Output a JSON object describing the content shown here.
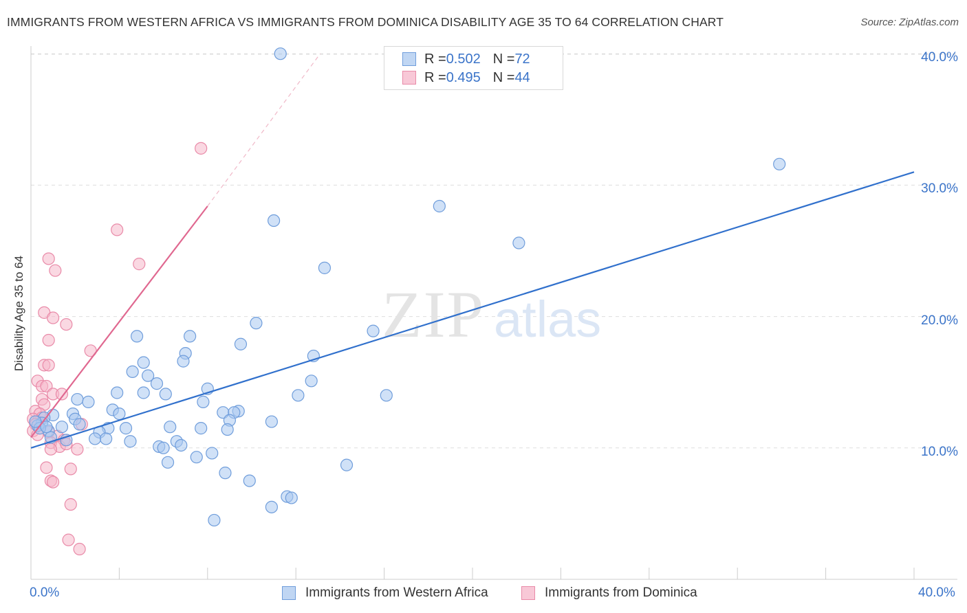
{
  "title": "IMMIGRANTS FROM WESTERN AFRICA VS IMMIGRANTS FROM DOMINICA DISABILITY AGE 35 TO 64 CORRELATION CHART",
  "source": "Source: ZipAtlas.com",
  "watermark": {
    "zip": "ZIP",
    "atlas": "atlas"
  },
  "legend": {
    "items": [
      {
        "r_label": "R = ",
        "r_value": "0.502",
        "n_label": "N = ",
        "n_value": "72"
      },
      {
        "r_label": "R = ",
        "r_value": "0.495",
        "n_label": "N = ",
        "n_value": "44"
      }
    ]
  },
  "colors": {
    "blue_fill": "#a9c8f0",
    "blue_stroke": "#6f9ddb",
    "blue_line": "#3070cc",
    "pink_fill": "#f6b8cb",
    "pink_stroke": "#e98aa8",
    "pink_line": "#e06890",
    "accent_text": "#3b74c9",
    "grid": "#dddddd"
  },
  "chart_data": {
    "type": "scatter",
    "title": "IMMIGRANTS FROM WESTERN AFRICA VS IMMIGRANTS FROM DOMINICA DISABILITY AGE 35 TO 64 CORRELATION CHART",
    "xlabel": "",
    "ylabel": "Disability Age 35 to 64",
    "xlim": [
      0,
      40
    ],
    "ylim": [
      0,
      41
    ],
    "x_tick_labels": [
      "0.0%",
      "40.0%"
    ],
    "y_ticks": [
      10,
      20,
      30,
      40
    ],
    "y_tick_labels": [
      "10.0%",
      "20.0%",
      "30.0%",
      "40.0%"
    ],
    "legend_position": "top-center",
    "series": [
      {
        "name": "Immigrants from Western Africa",
        "color": "blue",
        "r": 0.502,
        "n": 72,
        "trend": {
          "x": [
            0,
            40
          ],
          "y": [
            10.0,
            31.0
          ]
        },
        "points": [
          [
            11.3,
            40.0
          ],
          [
            33.9,
            31.6
          ],
          [
            18.5,
            28.4
          ],
          [
            22.1,
            25.6
          ],
          [
            11.0,
            27.3
          ],
          [
            13.3,
            23.7
          ],
          [
            15.5,
            18.9
          ],
          [
            10.2,
            19.5
          ],
          [
            9.5,
            17.9
          ],
          [
            4.8,
            18.5
          ],
          [
            7.2,
            18.5
          ],
          [
            7.0,
            17.2
          ],
          [
            6.9,
            16.6
          ],
          [
            5.1,
            16.5
          ],
          [
            4.6,
            15.8
          ],
          [
            5.3,
            15.5
          ],
          [
            5.7,
            14.9
          ],
          [
            8.0,
            14.5
          ],
          [
            12.8,
            17.0
          ],
          [
            12.7,
            15.1
          ],
          [
            16.1,
            14.0
          ],
          [
            12.1,
            14.0
          ],
          [
            3.9,
            14.2
          ],
          [
            5.1,
            14.2
          ],
          [
            6.1,
            14.1
          ],
          [
            7.8,
            13.5
          ],
          [
            2.1,
            13.7
          ],
          [
            2.6,
            13.5
          ],
          [
            3.7,
            12.9
          ],
          [
            4.0,
            12.6
          ],
          [
            8.7,
            12.7
          ],
          [
            9.4,
            12.8
          ],
          [
            9.2,
            12.7
          ],
          [
            9.0,
            12.1
          ],
          [
            10.9,
            12.0
          ],
          [
            1.0,
            12.5
          ],
          [
            1.9,
            12.6
          ],
          [
            2.0,
            12.2
          ],
          [
            0.6,
            12.3
          ],
          [
            1.4,
            11.6
          ],
          [
            2.2,
            11.8
          ],
          [
            0.5,
            11.9
          ],
          [
            0.3,
            11.7
          ],
          [
            0.8,
            11.3
          ],
          [
            3.5,
            11.5
          ],
          [
            4.3,
            11.5
          ],
          [
            6.3,
            11.6
          ],
          [
            7.7,
            11.5
          ],
          [
            8.9,
            11.4
          ],
          [
            3.1,
            11.2
          ],
          [
            0.9,
            10.8
          ],
          [
            2.9,
            10.7
          ],
          [
            3.4,
            10.7
          ],
          [
            1.6,
            10.6
          ],
          [
            4.5,
            10.5
          ],
          [
            6.6,
            10.5
          ],
          [
            5.8,
            10.1
          ],
          [
            6.8,
            10.2
          ],
          [
            6.0,
            10.0
          ],
          [
            8.2,
            9.6
          ],
          [
            7.5,
            9.3
          ],
          [
            6.2,
            8.9
          ],
          [
            14.3,
            8.7
          ],
          [
            8.8,
            8.1
          ],
          [
            9.9,
            7.5
          ],
          [
            11.6,
            6.3
          ],
          [
            11.8,
            6.2
          ],
          [
            10.9,
            5.5
          ],
          [
            8.3,
            4.5
          ],
          [
            0.4,
            11.5
          ],
          [
            0.2,
            12.0
          ],
          [
            0.7,
            11.6
          ]
        ]
      },
      {
        "name": "Immigrants from Dominica",
        "color": "pink",
        "r": 0.495,
        "n": 44,
        "trend": {
          "x": [
            0,
            8.0
          ],
          "y": [
            10.8,
            28.4
          ]
        },
        "trend_extended": {
          "x": [
            8.0,
            13.1
          ],
          "y": [
            28.4,
            40.0
          ]
        },
        "points": [
          [
            7.7,
            32.8
          ],
          [
            3.9,
            26.6
          ],
          [
            4.9,
            24.0
          ],
          [
            0.8,
            24.4
          ],
          [
            1.1,
            23.5
          ],
          [
            0.6,
            20.3
          ],
          [
            1.0,
            19.9
          ],
          [
            1.6,
            19.4
          ],
          [
            0.8,
            18.2
          ],
          [
            2.7,
            17.4
          ],
          [
            0.6,
            16.3
          ],
          [
            0.8,
            16.3
          ],
          [
            0.3,
            15.1
          ],
          [
            0.5,
            14.7
          ],
          [
            0.7,
            14.7
          ],
          [
            1.0,
            14.1
          ],
          [
            1.4,
            14.1
          ],
          [
            0.5,
            13.7
          ],
          [
            0.6,
            13.3
          ],
          [
            0.2,
            12.8
          ],
          [
            0.4,
            12.6
          ],
          [
            0.5,
            12.3
          ],
          [
            0.3,
            12.0
          ],
          [
            0.1,
            12.2
          ],
          [
            0.2,
            11.8
          ],
          [
            0.4,
            11.5
          ],
          [
            0.1,
            11.3
          ],
          [
            0.3,
            11.0
          ],
          [
            0.8,
            11.2
          ],
          [
            1.2,
            10.9
          ],
          [
            1.5,
            10.6
          ],
          [
            0.9,
            10.4
          ],
          [
            1.3,
            10.1
          ],
          [
            1.6,
            10.3
          ],
          [
            2.1,
            9.9
          ],
          [
            0.9,
            9.9
          ],
          [
            2.3,
            11.8
          ],
          [
            0.7,
            8.5
          ],
          [
            1.8,
            8.4
          ],
          [
            0.9,
            7.5
          ],
          [
            1.0,
            7.4
          ],
          [
            1.8,
            5.7
          ],
          [
            1.7,
            3.0
          ],
          [
            2.2,
            2.3
          ]
        ]
      }
    ]
  }
}
